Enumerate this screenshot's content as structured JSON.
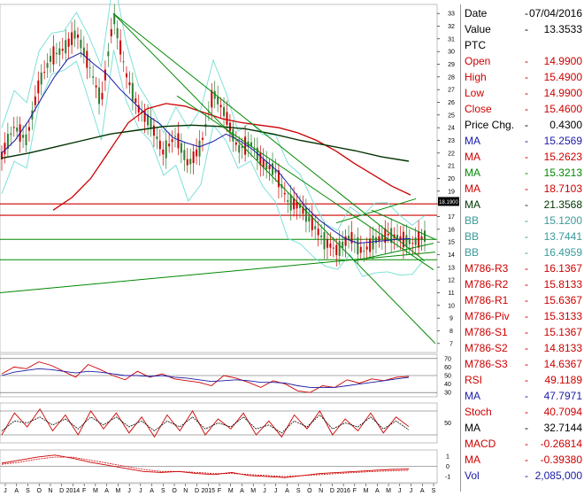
{
  "colors": {
    "price_up": "#2e7d32",
    "price_down": "#cc0000",
    "ma_short": "#1a1aa6",
    "ma_mid": "#cc0000",
    "ma_long": "#003300",
    "bb": "#7fe0d8",
    "trend": "#008800",
    "level": "#cc0000",
    "level_green": "#008800"
  },
  "chart_data": [
    {
      "type": "line",
      "name": "price-panel",
      "x_ticks": [
        "J",
        "A",
        "S",
        "O",
        "N",
        "D",
        "2014",
        "F",
        "M",
        "A",
        "M",
        "J",
        "J",
        "A",
        "S",
        "O",
        "N",
        "D",
        "2015",
        "F",
        "M",
        "A",
        "M",
        "J",
        "J",
        "A",
        "S",
        "O",
        "N",
        "D",
        "2016",
        "F",
        "M",
        "A",
        "M",
        "J",
        "J",
        "A",
        "S"
      ],
      "y_ticks": [
        7,
        8,
        9,
        10,
        11,
        12,
        13,
        14,
        15,
        16,
        17,
        18,
        19,
        20,
        21,
        22,
        23,
        24,
        25,
        26,
        27,
        28,
        29,
        30,
        31,
        32,
        33
      ],
      "ylim": [
        6.5,
        33.5
      ],
      "price_marker": "18.1900",
      "series_close_samples": [
        21.8,
        24.1,
        23.0,
        27.5,
        29.6,
        30.2,
        31.5,
        29.0,
        26.0,
        32.8,
        28.2,
        25.5,
        24.3,
        22.0,
        23.4,
        21.1,
        22.5,
        26.8,
        25.0,
        22.3,
        22.8,
        21.2,
        20.6,
        18.2,
        17.8,
        16.4,
        15.0,
        14.3,
        15.5,
        14.2,
        15.1,
        15.6,
        15.3,
        14.9,
        15.46
      ],
      "ma_50": [
        22.0,
        23.0,
        24.5,
        26.3,
        28.0,
        29.4,
        29.9,
        29.0,
        28.2,
        27.0,
        26.0,
        25.0,
        24.3,
        23.2,
        22.8,
        22.5,
        22.9,
        23.5,
        23.0,
        22.3,
        21.4,
        20.5,
        19.2,
        17.8,
        16.8,
        16.0,
        15.3,
        14.9,
        15.0,
        15.1,
        15.2,
        15.26
      ],
      "ma_100": [
        17.5,
        18.5,
        20.0,
        22.2,
        24.4,
        25.5,
        25.9,
        25.7,
        25.2,
        24.7,
        24.4,
        24.2,
        24.0,
        23.6,
        23.0,
        22.2,
        21.2,
        20.3,
        19.4,
        18.7
      ],
      "ma_200": [
        21.6,
        22.0,
        22.5,
        23.0,
        23.5,
        23.8,
        24.1,
        24.2,
        24.1,
        23.9,
        23.5,
        23.0,
        22.6,
        22.2,
        21.7,
        21.36
      ],
      "levels_red": [
        18.0,
        17.1
      ],
      "levels_green": [
        15.2,
        13.6
      ]
    },
    {
      "type": "line",
      "name": "rsi-panel",
      "y_ticks": [
        30,
        40,
        50,
        60,
        70
      ],
      "ylim": [
        25,
        75
      ],
      "rsi": [
        52,
        60,
        58,
        66,
        62,
        55,
        48,
        63,
        57,
        50,
        45,
        55,
        48,
        52,
        46,
        44,
        42,
        38,
        50,
        47,
        42,
        36,
        44,
        40,
        32,
        30,
        38,
        36,
        45,
        41,
        46,
        44,
        48,
        49.1
      ],
      "ma": [
        50,
        54,
        56,
        58,
        57,
        55,
        53,
        55,
        54,
        52,
        50,
        50,
        49,
        50,
        48,
        47,
        45,
        43,
        44,
        45,
        44,
        42,
        42,
        41,
        38,
        36,
        36,
        36,
        38,
        40,
        42,
        44,
        46,
        47.8
      ]
    },
    {
      "type": "line",
      "name": "stoch-panel",
      "y_ticks": [
        50
      ],
      "ylim": [
        0,
        100
      ],
      "stoch": [
        20,
        75,
        40,
        85,
        30,
        70,
        20,
        80,
        35,
        75,
        25,
        65,
        15,
        70,
        30,
        80,
        20,
        60,
        35,
        75,
        20,
        55,
        15,
        70,
        35,
        80,
        20,
        60,
        30,
        75,
        25,
        65,
        40.7
      ],
      "ma": [
        30,
        55,
        50,
        65,
        45,
        60,
        35,
        65,
        45,
        65,
        40,
        55,
        30,
        55,
        40,
        65,
        35,
        50,
        40,
        65,
        35,
        45,
        25,
        55,
        40,
        70,
        35,
        50,
        40,
        65,
        35,
        55,
        32.7
      ]
    },
    {
      "type": "line",
      "name": "macd-panel",
      "y_ticks": [
        1,
        0,
        -1
      ],
      "ylim": [
        -1.6,
        1.6
      ],
      "macd": [
        0.3,
        0.6,
        0.9,
        1.1,
        0.8,
        0.4,
        0.1,
        -0.2,
        -0.5,
        -0.6,
        -0.5,
        -0.7,
        -0.8,
        -0.6,
        -0.9,
        -1.0,
        -1.1,
        -0.9,
        -0.7,
        -0.6,
        -0.5,
        -0.4,
        -0.3,
        -0.27
      ],
      "signal": [
        0.2,
        0.4,
        0.7,
        0.9,
        0.9,
        0.6,
        0.3,
        0.0,
        -0.3,
        -0.5,
        -0.5,
        -0.6,
        -0.7,
        -0.7,
        -0.8,
        -0.9,
        -1.0,
        -0.9,
        -0.8,
        -0.7,
        -0.6,
        -0.5,
        -0.45,
        -0.39
      ]
    }
  ],
  "panel": [
    {
      "label": "Date",
      "value": "07/04/2016",
      "color": "#000000"
    },
    {
      "label": "Value",
      "value": "13.3533",
      "color": "#000000"
    },
    {
      "label": "PTC",
      "value": "",
      "color": "#000000"
    },
    {
      "label": "Open",
      "value": "14.9900",
      "color": "#cc0000"
    },
    {
      "label": "High",
      "value": "15.4900",
      "color": "#cc0000"
    },
    {
      "label": "Low",
      "value": "14.9900",
      "color": "#cc0000"
    },
    {
      "label": "Close",
      "value": "15.4600",
      "color": "#cc0000"
    },
    {
      "label": "Price Chg.",
      "value": "0.4300",
      "color": "#000000"
    },
    {
      "label": "MA",
      "value": "15.2569",
      "color": "#1a1aa6"
    },
    {
      "label": "MA",
      "value": "15.2623",
      "color": "#cc0000"
    },
    {
      "label": "MA",
      "value": "15.3213",
      "color": "#008800"
    },
    {
      "label": "MA",
      "value": "18.7103",
      "color": "#cc0000"
    },
    {
      "label": "MA",
      "value": "21.3568",
      "color": "#003300"
    },
    {
      "label": "BB",
      "value": "15.1200",
      "color": "#3a9a9a"
    },
    {
      "label": "BB",
      "value": "13.7441",
      "color": "#3a9a9a"
    },
    {
      "label": "BB",
      "value": "16.4959",
      "color": "#3a9a9a"
    },
    {
      "label": "M786-R3",
      "value": "16.1367",
      "color": "#cc0000"
    },
    {
      "label": "M786-R2",
      "value": "15.8133",
      "color": "#cc0000"
    },
    {
      "label": "M786-R1",
      "value": "15.6367",
      "color": "#cc0000"
    },
    {
      "label": "M786-Piv",
      "value": "15.3133",
      "color": "#cc0000"
    },
    {
      "label": "M786-S1",
      "value": "15.1367",
      "color": "#cc0000"
    },
    {
      "label": "M786-S2",
      "value": "14.8133",
      "color": "#cc0000"
    },
    {
      "label": "M786-S3",
      "value": "14.6367",
      "color": "#cc0000"
    },
    {
      "label": "RSI",
      "value": "49.1189",
      "color": "#cc0000"
    },
    {
      "label": "MA",
      "value": "47.7971",
      "color": "#1a1aa6"
    },
    {
      "label": "Stoch",
      "value": "40.7094",
      "color": "#cc0000"
    },
    {
      "label": "MA",
      "value": "32.7144",
      "color": "#000000"
    },
    {
      "label": "MACD",
      "value": "-0.26814",
      "color": "#cc0000"
    },
    {
      "label": "MA",
      "value": "-0.39380",
      "color": "#cc0000"
    },
    {
      "label": "Vol",
      "value": "2,085,000",
      "color": "#1a1aa6"
    }
  ]
}
